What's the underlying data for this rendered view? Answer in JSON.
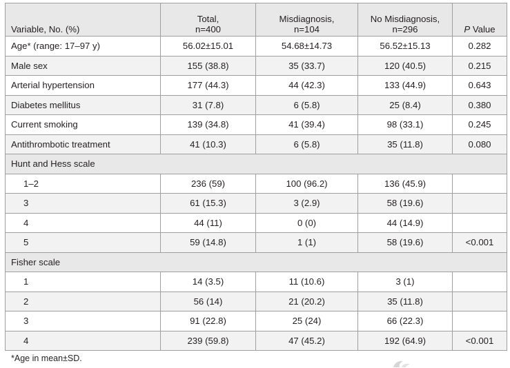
{
  "header": {
    "variable": "Variable, No. (%)",
    "total": "Total,",
    "total_n": "n=400",
    "mis": "Misdiagnosis,",
    "mis_n": "n=104",
    "nomis": "No Misdiagnosis,",
    "nomis_n": "n=296",
    "p_italic": "P",
    "p_rest": " Value"
  },
  "rows": [
    {
      "label": "Age* (range: 17–97 y)",
      "total": "56.02±15.01",
      "mis": "54.68±14.73",
      "nomis": "56.52±15.13",
      "p": "0.282"
    },
    {
      "label": "Male sex",
      "total": "155 (38.8)",
      "mis": "35 (33.7)",
      "nomis": "120 (40.5)",
      "p": "0.215"
    },
    {
      "label": "Arterial hypertension",
      "total": "177 (44.3)",
      "mis": "44 (42.3)",
      "nomis": "133 (44.9)",
      "p": "0.643"
    },
    {
      "label": "Diabetes mellitus",
      "total": "31 (7.8)",
      "mis": "6 (5.8)",
      "nomis": "25 (8.4)",
      "p": "0.380"
    },
    {
      "label": "Current smoking",
      "total": "139 (34.8)",
      "mis": "41 (39.4)",
      "nomis": "98 (33.1)",
      "p": "0.245"
    },
    {
      "label": "Antithrombotic treatment",
      "total": "41 (10.3)",
      "mis": "6 (5.8)",
      "nomis": "35 (11.8)",
      "p": "0.080"
    }
  ],
  "hunt": {
    "title": "Hunt and Hess scale",
    "rows": [
      {
        "label": "1–2",
        "total": "236 (59)",
        "mis": "100 (96.2)",
        "nomis": "136 (45.9)",
        "p": ""
      },
      {
        "label": "3",
        "total": "61 (15.3)",
        "mis": "3 (2.9)",
        "nomis": "58 (19.6)",
        "p": ""
      },
      {
        "label": "4",
        "total": "44 (11)",
        "mis": "0 (0)",
        "nomis": "44 (14.9)",
        "p": ""
      },
      {
        "label": "5",
        "total": "59 (14.8)",
        "mis": "1 (1)",
        "nomis": "58 (19.6)",
        "p": "<0.001"
      }
    ]
  },
  "fisher": {
    "title": "Fisher scale",
    "rows": [
      {
        "label": "1",
        "total": "14 (3.5)",
        "mis": "11 (10.6)",
        "nomis": "3 (1)",
        "p": ""
      },
      {
        "label": "2",
        "total": "56 (14)",
        "mis": "21 (20.2)",
        "nomis": "35 (11.8)",
        "p": ""
      },
      {
        "label": "3",
        "total": "91 (22.8)",
        "mis": "25 (24)",
        "nomis": "66 (22.3)",
        "p": ""
      },
      {
        "label": "4",
        "total": "239 (59.8)",
        "mis": "47 (45.2)",
        "nomis": "192 (64.9)",
        "p": "<0.001"
      }
    ]
  },
  "footnote": "*Age in mean±SD."
}
